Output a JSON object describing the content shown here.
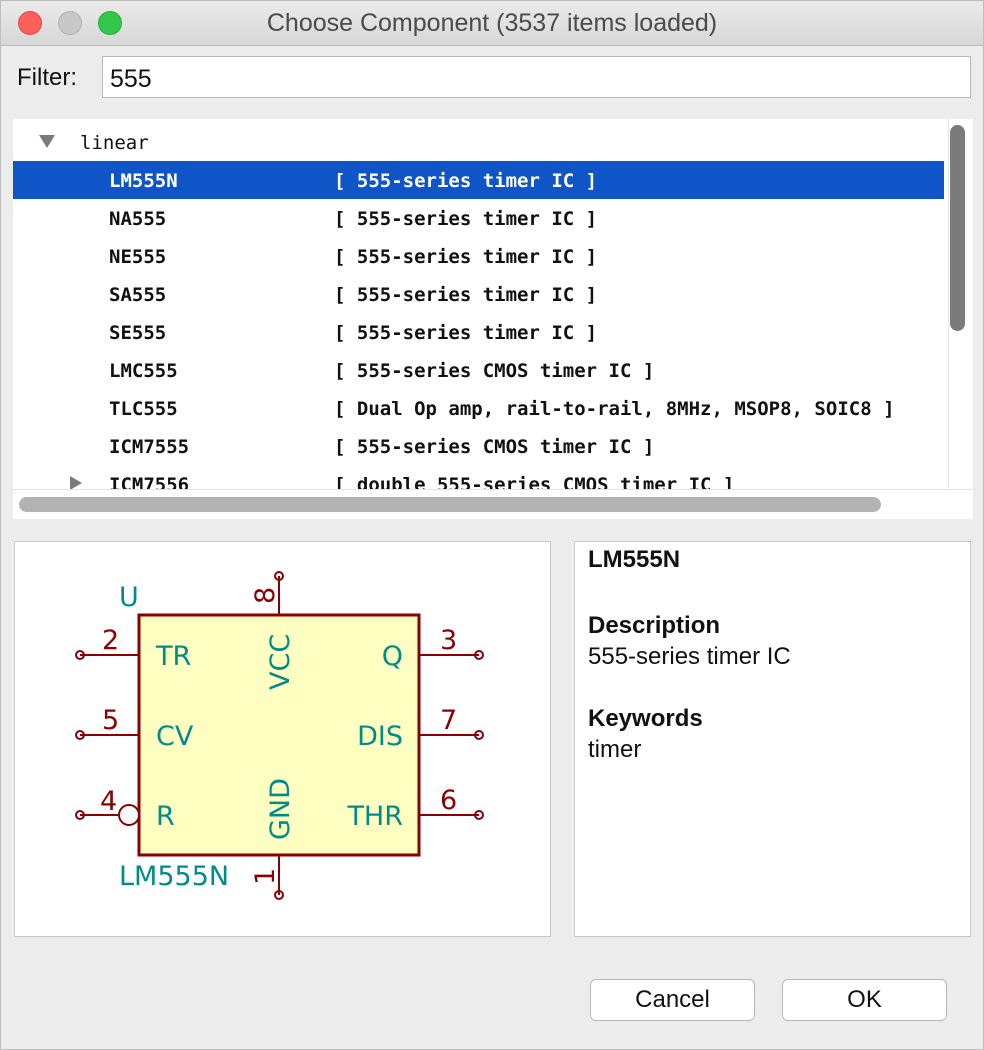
{
  "window": {
    "title": "Choose Component (3537 items loaded)"
  },
  "filter": {
    "label": "Filter:",
    "value": "555"
  },
  "tree": {
    "group": "linear",
    "rows": [
      {
        "name": "LM555N",
        "desc": "[ 555-series timer IC ]",
        "selected": true
      },
      {
        "name": "NA555",
        "desc": "[ 555-series timer IC ]"
      },
      {
        "name": "NE555",
        "desc": "[ 555-series timer IC ]"
      },
      {
        "name": "SA555",
        "desc": "[ 555-series timer IC ]"
      },
      {
        "name": "SE555",
        "desc": "[ 555-series timer IC ]"
      },
      {
        "name": "LMC555",
        "desc": "[ 555-series CMOS timer IC ]"
      },
      {
        "name": "TLC555",
        "desc": "[ Dual Op amp, rail-to-rail, 8MHz, MSOP8, SOIC8 ]"
      },
      {
        "name": "ICM7555",
        "desc": "[ 555-series CMOS timer IC ]"
      },
      {
        "name": "ICM7556",
        "desc": "[ double 555-series CMOS timer IC ]"
      }
    ]
  },
  "symbol": {
    "ref": "U",
    "value": "LM555N",
    "pins": {
      "tr": {
        "num": "2",
        "name": "TR"
      },
      "cv": {
        "num": "5",
        "name": "CV"
      },
      "r": {
        "num": "4",
        "name": "R"
      },
      "q": {
        "num": "3",
        "name": "Q"
      },
      "dis": {
        "num": "7",
        "name": "DIS"
      },
      "thr": {
        "num": "6",
        "name": "THR"
      },
      "vcc": {
        "num": "8",
        "name": "VCC"
      },
      "gnd": {
        "num": "1",
        "name": "GND"
      }
    },
    "colors": {
      "pin": "#8b0000",
      "text": "#008b8b",
      "body": "#ffffc2"
    }
  },
  "info": {
    "title": "LM555N",
    "description_label": "Description",
    "description": "555-series timer IC",
    "keywords_label": "Keywords",
    "keywords": "timer"
  },
  "buttons": {
    "cancel": "Cancel",
    "ok": "OK"
  }
}
